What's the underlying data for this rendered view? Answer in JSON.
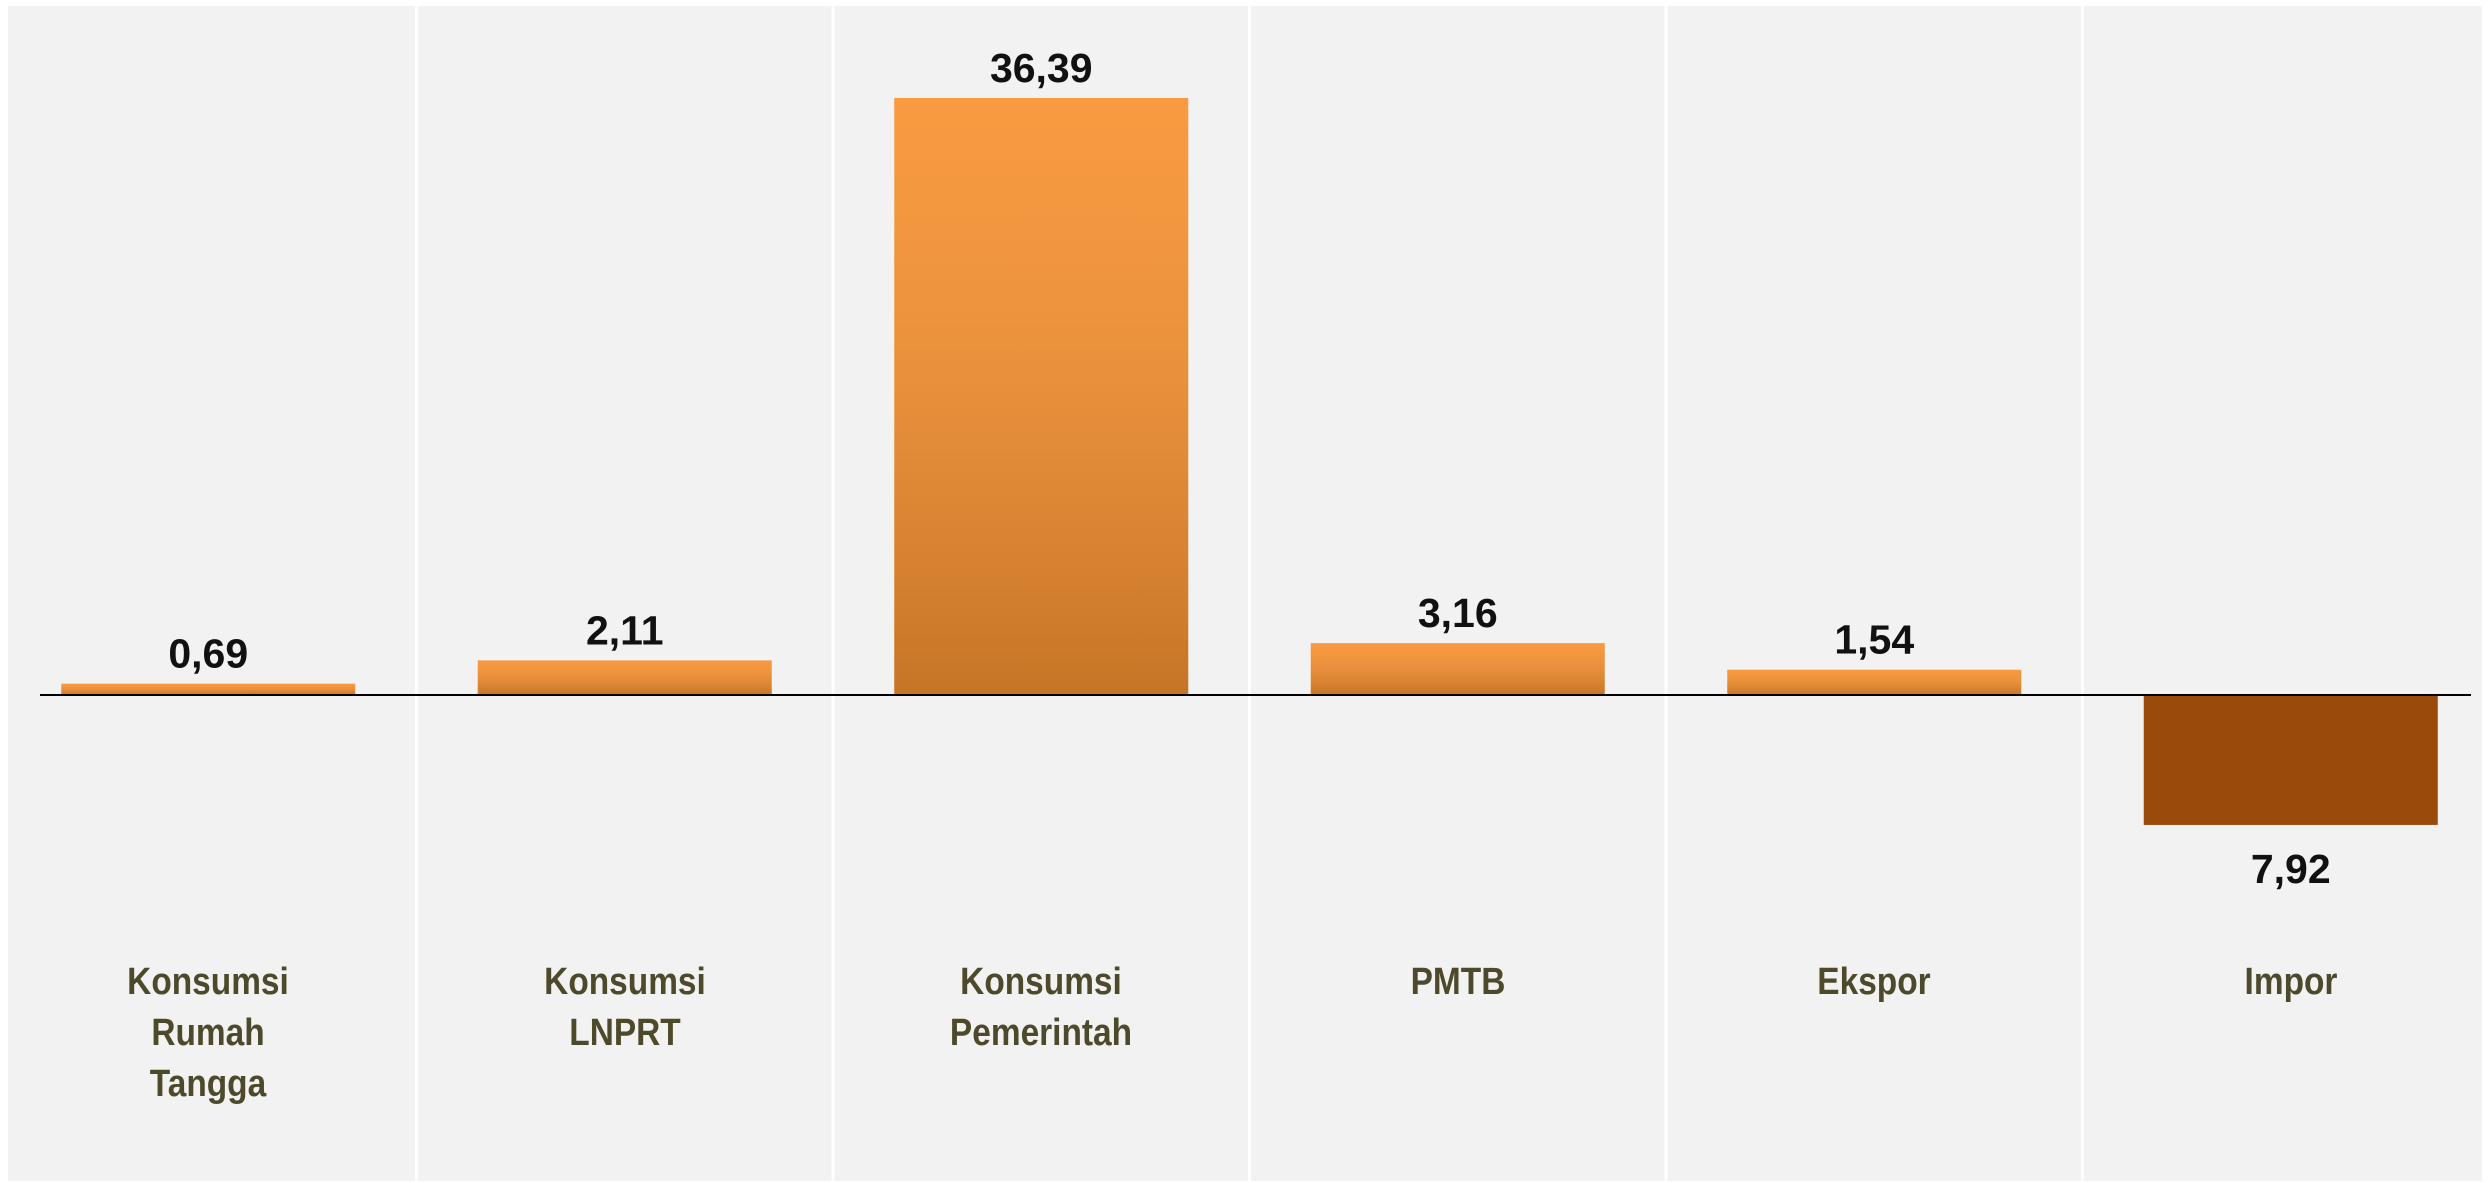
{
  "chart_data": {
    "type": "bar",
    "categories": [
      "Konsumsi\nRumah\nTangga",
      "Konsumsi\nLNPRT",
      "Konsumsi\nPemerintah",
      "PMTB",
      "Ekspor",
      "Impor"
    ],
    "values": [
      0.69,
      2.11,
      36.39,
      3.16,
      1.54,
      -7.92
    ],
    "value_labels": [
      "0,69",
      "2,11",
      "36,39",
      "3,16",
      "1,54",
      "7,92"
    ],
    "colors": [
      "#f7912f",
      "#f7912f",
      "#f7912f",
      "#f7912f",
      "#f7912f",
      "#9a4a0a"
    ]
  }
}
